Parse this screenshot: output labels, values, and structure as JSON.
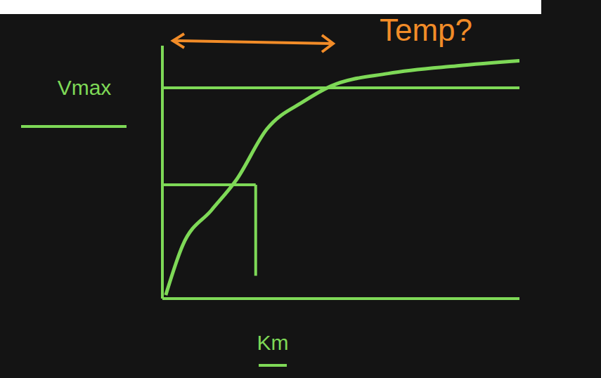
{
  "chart_data": {
    "type": "line",
    "x": [
      0.1,
      0.6,
      1.46,
      2.2,
      3.1,
      4.2,
      5.0,
      6.7,
      8.75,
      10.6
    ],
    "values": [
      0.14,
      2.1,
      3.5,
      4.7,
      6.7,
      7.8,
      8.4,
      8.9,
      9.2,
      9.4
    ],
    "color": "#7ed957",
    "xlim": [
      0,
      10.6
    ],
    "ylim": [
      0,
      10
    ],
    "tick_labels": false,
    "annotations": [
      {
        "text": "Vmax",
        "y": 8.33
      },
      {
        "text": "Km",
        "x": 2.77,
        "y": 4.5
      },
      {
        "text": "Temp?",
        "color": "#f28c28"
      }
    ]
  }
}
